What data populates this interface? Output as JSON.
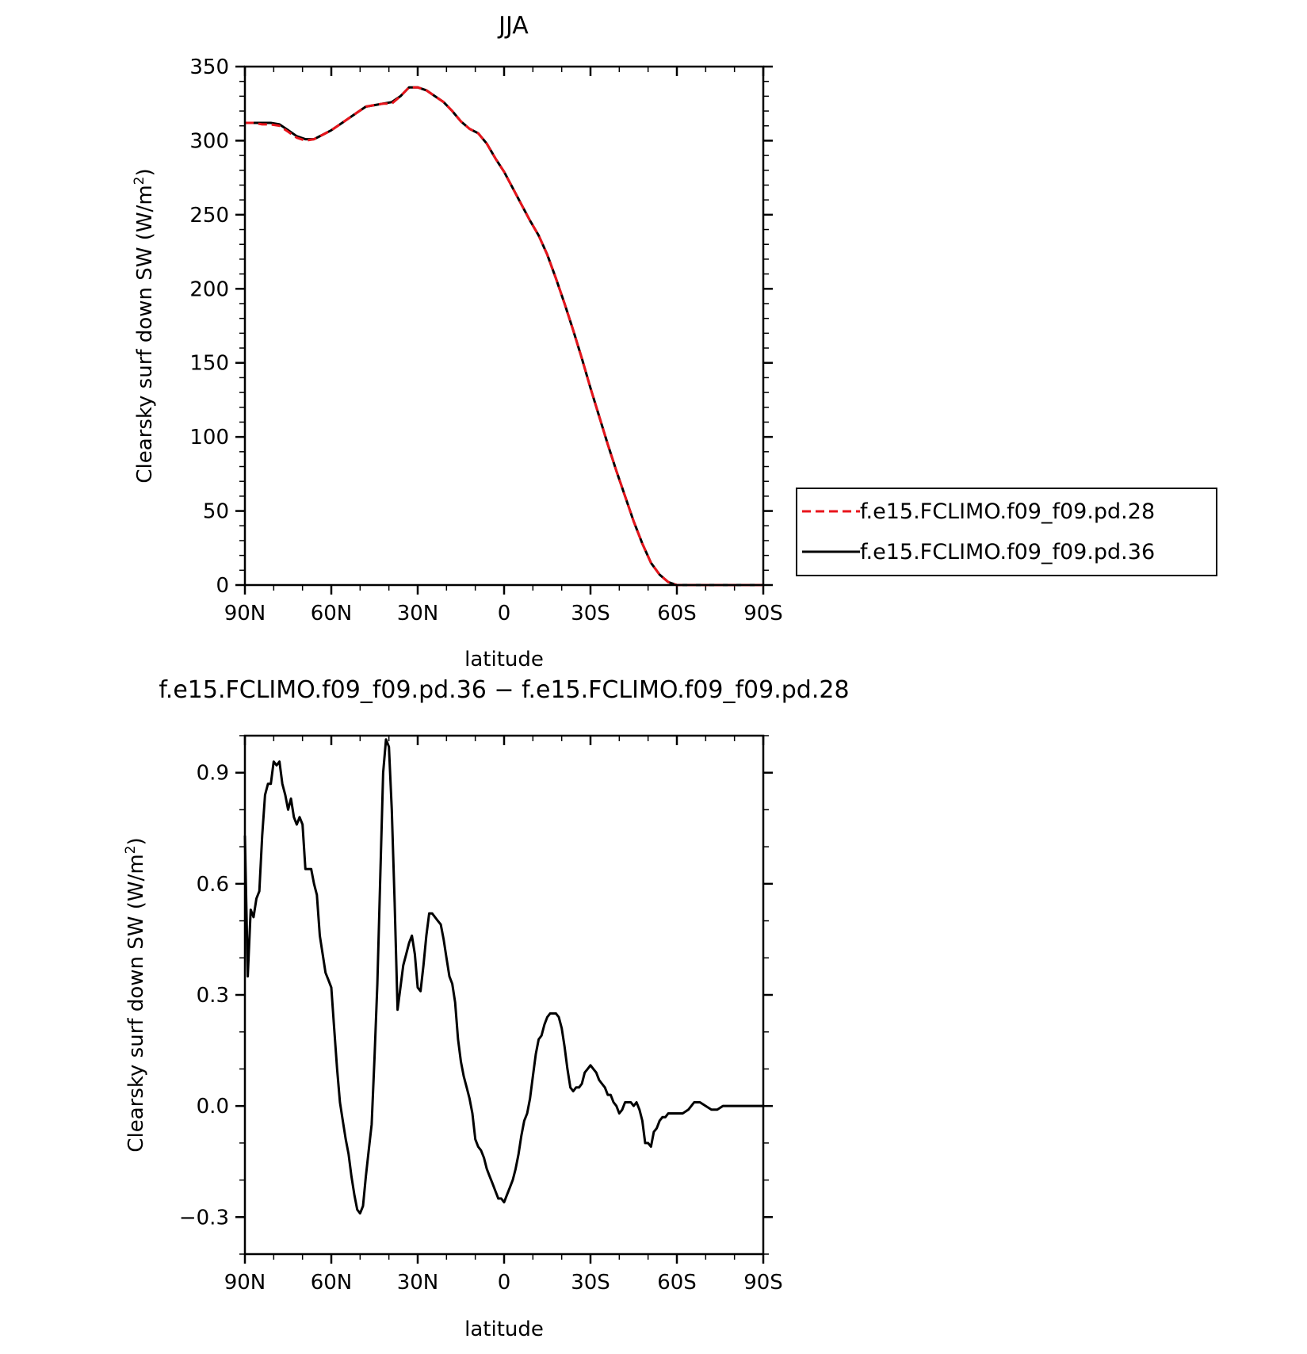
{
  "figure": {
    "top_title": "JJA",
    "bottom_title": "f.e15.FCLIMO.f09_f09.pd.36 − f.e15.FCLIMO.f09_f09.pd.28"
  },
  "legend": {
    "entries": [
      {
        "label": "f.e15.FCLIMO.f09_f09.pd.28",
        "color": "#e8141b",
        "dash": "dashed"
      },
      {
        "label": "f.e15.FCLIMO.f09_f09.pd.36",
        "color": "#000000",
        "dash": "solid"
      }
    ]
  },
  "chart_data": [
    {
      "type": "line",
      "title": "JJA",
      "xlabel": "latitude",
      "ylabel": "Clearsky surf down SW (W/m²)",
      "xlim": [
        90,
        -90
      ],
      "ylim": [
        0,
        350
      ],
      "x_ticks": [
        90,
        60,
        30,
        0,
        -30,
        -60,
        -90
      ],
      "x_tick_labels": [
        "90N",
        "60N",
        "30N",
        "0",
        "30S",
        "60S",
        "90S"
      ],
      "y_ticks": [
        0,
        50,
        100,
        150,
        200,
        250,
        300,
        350
      ],
      "y_tick_labels": [
        "0",
        "50",
        "100",
        "150",
        "200",
        "250",
        "300",
        "350"
      ],
      "series": [
        {
          "name": "f.e15.FCLIMO.f09_f09.pd.28",
          "color": "#e8141b",
          "dash": "dashed",
          "x": [
            90,
            87,
            84,
            81,
            78,
            75,
            72,
            69,
            66,
            63,
            60,
            57,
            54,
            51,
            48,
            45,
            42,
            39,
            36,
            33,
            30,
            27,
            24,
            21,
            18,
            15,
            12,
            9,
            6,
            3,
            0,
            -3,
            -6,
            -9,
            -12,
            -15,
            -18,
            -21,
            -24,
            -27,
            -30,
            -33,
            -36,
            -39,
            -42,
            -45,
            -48,
            -51,
            -54,
            -57,
            -60,
            -63,
            -66,
            -69,
            -72,
            -75,
            -78,
            -81,
            -84,
            -87,
            -90
          ],
          "y": [
            312,
            312,
            311,
            311,
            310,
            306,
            302,
            300,
            301,
            304,
            307,
            311,
            315,
            319,
            323,
            324,
            325,
            325,
            330,
            336,
            336,
            334,
            330,
            326,
            320,
            313,
            308,
            305,
            298,
            288,
            279,
            268,
            257,
            246,
            236,
            223,
            207,
            190,
            172,
            153,
            133,
            114,
            95,
            77,
            60,
            43,
            28,
            15,
            7,
            2,
            0,
            0,
            0,
            0,
            0,
            0,
            0,
            0,
            0,
            0,
            0
          ]
        },
        {
          "name": "f.e15.FCLIMO.f09_f09.pd.36",
          "color": "#000000",
          "dash": "solid",
          "x": [
            90,
            87,
            84,
            81,
            78,
            75,
            72,
            69,
            66,
            63,
            60,
            57,
            54,
            51,
            48,
            45,
            42,
            39,
            36,
            33,
            30,
            27,
            24,
            21,
            18,
            15,
            12,
            9,
            6,
            3,
            0,
            -3,
            -6,
            -9,
            -12,
            -15,
            -18,
            -21,
            -24,
            -27,
            -30,
            -33,
            -36,
            -39,
            -42,
            -45,
            -48,
            -51,
            -54,
            -57,
            -60,
            -63,
            -66,
            -69,
            -72,
            -75,
            -78,
            -81,
            -84,
            -87,
            -90
          ],
          "y": [
            312,
            312,
            312,
            312,
            311,
            307,
            303,
            301,
            301,
            304,
            307,
            311,
            315,
            319,
            323,
            324,
            325,
            326,
            330,
            336,
            336,
            334,
            330,
            326,
            320,
            313,
            308,
            305,
            298,
            288,
            279,
            268,
            257,
            246,
            236,
            223,
            207,
            190,
            172,
            153,
            133,
            114,
            95,
            77,
            60,
            43,
            28,
            15,
            7,
            2,
            0,
            0,
            0,
            0,
            0,
            0,
            0,
            0,
            0,
            0,
            0
          ]
        }
      ]
    },
    {
      "type": "line",
      "title": "f.e15.FCLIMO.f09_f09.pd.36 − f.e15.FCLIMO.f09_f09.pd.28",
      "xlabel": "latitude",
      "ylabel": "Clearsky surf down SW (W/m²)",
      "xlim": [
        90,
        -90
      ],
      "ylim": [
        -0.4,
        1.0
      ],
      "x_ticks": [
        90,
        60,
        30,
        0,
        -30,
        -60,
        -90
      ],
      "x_tick_labels": [
        "90N",
        "60N",
        "30N",
        "0",
        "30S",
        "60S",
        "90S"
      ],
      "y_ticks": [
        -0.3,
        0.0,
        0.3,
        0.6,
        0.9
      ],
      "y_tick_labels": [
        "−0.3",
        "0.0",
        "0.3",
        "0.6",
        "0.9"
      ],
      "series": [
        {
          "name": "",
          "color": "#000000",
          "dash": "solid",
          "x": [
            90,
            89,
            88,
            87,
            86,
            85,
            84,
            83,
            82,
            81,
            80,
            79,
            78,
            77,
            76,
            75,
            74,
            73,
            72,
            71,
            70,
            69,
            68,
            67,
            66,
            65,
            64,
            63,
            62,
            61,
            60,
            59,
            58,
            57,
            56,
            55,
            54,
            53,
            52,
            51,
            50,
            49,
            48,
            47,
            46,
            45,
            44,
            43,
            42,
            41,
            40,
            39,
            38,
            37,
            36,
            35,
            34,
            33,
            32,
            31,
            30,
            29,
            28,
            27,
            26,
            25,
            24,
            23,
            22,
            21,
            20,
            19,
            18,
            17,
            16,
            15,
            14,
            13,
            12,
            11,
            10,
            9,
            8,
            7,
            6,
            5,
            4,
            3,
            2,
            1,
            0,
            -1,
            -2,
            -3,
            -4,
            -5,
            -6,
            -7,
            -8,
            -9,
            -10,
            -11,
            -12,
            -13,
            -14,
            -15,
            -16,
            -17,
            -18,
            -19,
            -20,
            -21,
            -22,
            -23,
            -24,
            -25,
            -26,
            -27,
            -28,
            -29,
            -30,
            -31,
            -32,
            -33,
            -34,
            -35,
            -36,
            -37,
            -38,
            -39,
            -40,
            -41,
            -42,
            -43,
            -44,
            -45,
            -46,
            -47,
            -48,
            -49,
            -50,
            -51,
            -52,
            -53,
            -54,
            -55,
            -56,
            -57,
            -58,
            -59,
            -60,
            -62,
            -64,
            -66,
            -68,
            -70,
            -72,
            -74,
            -76,
            -78,
            -80,
            -84,
            -90
          ],
          "y": [
            0.73,
            0.35,
            0.53,
            0.51,
            0.56,
            0.58,
            0.73,
            0.84,
            0.87,
            0.87,
            0.93,
            0.92,
            0.93,
            0.87,
            0.84,
            0.8,
            0.83,
            0.78,
            0.76,
            0.78,
            0.76,
            0.64,
            0.64,
            0.64,
            0.6,
            0.57,
            0.46,
            0.41,
            0.36,
            0.34,
            0.32,
            0.21,
            0.1,
            0.01,
            -0.04,
            -0.09,
            -0.13,
            -0.19,
            -0.24,
            -0.28,
            -0.29,
            -0.27,
            -0.19,
            -0.12,
            -0.05,
            0.13,
            0.33,
            0.62,
            0.9,
            0.99,
            0.97,
            0.8,
            0.55,
            0.26,
            0.32,
            0.38,
            0.41,
            0.44,
            0.46,
            0.41,
            0.32,
            0.31,
            0.38,
            0.46,
            0.52,
            0.52,
            0.51,
            0.5,
            0.49,
            0.45,
            0.4,
            0.35,
            0.33,
            0.28,
            0.18,
            0.12,
            0.08,
            0.05,
            0.02,
            -0.02,
            -0.09,
            -0.11,
            -0.12,
            -0.14,
            -0.17,
            -0.19,
            -0.21,
            -0.23,
            -0.25,
            -0.25,
            -0.26,
            -0.24,
            -0.22,
            -0.2,
            -0.17,
            -0.13,
            -0.08,
            -0.04,
            -0.02,
            0.02,
            0.08,
            0.14,
            0.18,
            0.19,
            0.22,
            0.24,
            0.25,
            0.25,
            0.25,
            0.24,
            0.21,
            0.16,
            0.1,
            0.05,
            0.04,
            0.05,
            0.05,
            0.06,
            0.09,
            0.1,
            0.11,
            0.1,
            0.09,
            0.07,
            0.06,
            0.05,
            0.03,
            0.03,
            0.01,
            0.0,
            -0.02,
            -0.01,
            0.01,
            0.01,
            0.01,
            0.0,
            0.01,
            -0.01,
            -0.04,
            -0.1,
            -0.1,
            -0.11,
            -0.07,
            -0.06,
            -0.04,
            -0.03,
            -0.03,
            -0.02,
            -0.02,
            -0.02,
            -0.02,
            -0.02,
            -0.01,
            0.01,
            0.01,
            0.0,
            -0.01,
            -0.01,
            0.0,
            0.0,
            0.0,
            0.0,
            0.0
          ]
        }
      ]
    }
  ]
}
